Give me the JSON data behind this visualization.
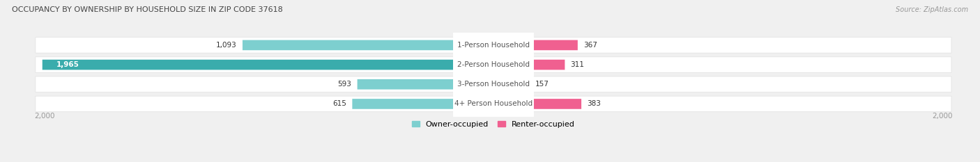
{
  "title": "OCCUPANCY BY OWNERSHIP BY HOUSEHOLD SIZE IN ZIP CODE 37618",
  "source": "Source: ZipAtlas.com",
  "categories": [
    "1-Person Household",
    "2-Person Household",
    "3-Person Household",
    "4+ Person Household"
  ],
  "owner_values": [
    1093,
    1965,
    593,
    615
  ],
  "renter_values": [
    367,
    311,
    157,
    383
  ],
  "owner_color_light": "#7dcfcf",
  "owner_color_dark": "#3aacac",
  "renter_color_light": "#f4a8c0",
  "renter_color_dark": "#f06090",
  "owner_colors": [
    "#7dcfcf",
    "#3aacac",
    "#7dcfcf",
    "#7dcfcf"
  ],
  "renter_colors": [
    "#f06090",
    "#f06090",
    "#f4a8c0",
    "#f06090"
  ],
  "axis_max": 2000,
  "bg_color": "#f0f0f0",
  "row_bg": "#f7f7f7",
  "row_border": "#e0e0e0",
  "label_color": "#555555",
  "title_color": "#444444",
  "legend_owner": "Owner-occupied",
  "legend_renter": "Renter-occupied",
  "axis_label_color": "#999999",
  "value_label_dark": "#333333",
  "value_label_white": "#ffffff"
}
